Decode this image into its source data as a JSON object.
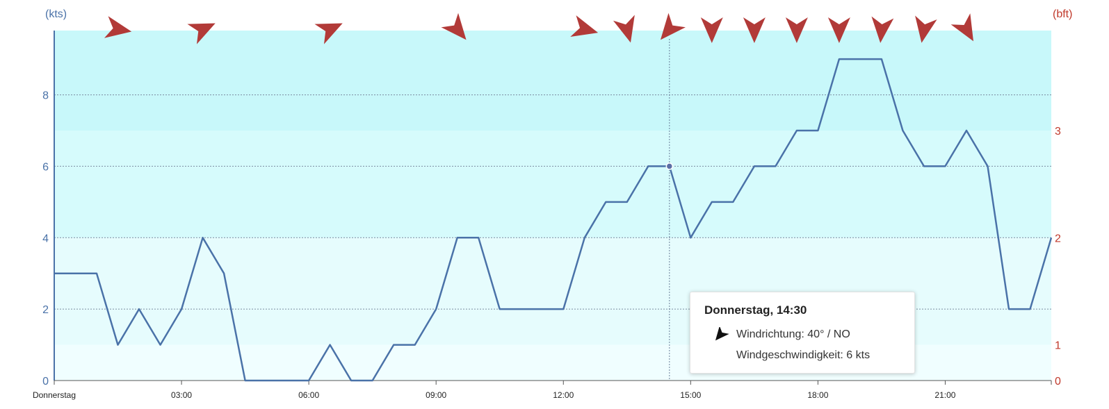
{
  "chart_data": {
    "type": "line",
    "title": "",
    "left_axis": {
      "unit": "(kts)",
      "ticks": [
        0,
        2,
        4,
        6,
        8
      ],
      "range": [
        0,
        9.8
      ]
    },
    "right_axis": {
      "unit": "(bft)",
      "ticks": [
        0,
        1,
        2,
        3
      ],
      "values_kts": [
        0,
        1,
        4,
        7
      ]
    },
    "x_axis": {
      "range_hours": [
        0,
        23.5
      ],
      "ticks": [
        {
          "hour": 0,
          "label": "Donnerstag"
        },
        {
          "hour": 3,
          "label": "03:00"
        },
        {
          "hour": 6,
          "label": "06:00"
        },
        {
          "hour": 9,
          "label": "09:00"
        },
        {
          "hour": 12,
          "label": "12:00"
        },
        {
          "hour": 15,
          "label": "15:00"
        },
        {
          "hour": 18,
          "label": "18:00"
        },
        {
          "hour": 21,
          "label": "21:00"
        }
      ]
    },
    "bands": [
      {
        "from": 0,
        "to": 1,
        "color": "#f0feff"
      },
      {
        "from": 1,
        "to": 4,
        "color": "#e6fcfd"
      },
      {
        "from": 4,
        "to": 7,
        "color": "#d6fbfc"
      },
      {
        "from": 7,
        "to": 9.8,
        "color": "#c8f8fa"
      }
    ],
    "series": [
      {
        "color": "#4a72a8",
        "points": [
          [
            0,
            3
          ],
          [
            1,
            3
          ],
          [
            1.5,
            1
          ],
          [
            2,
            2
          ],
          [
            2.5,
            1
          ],
          [
            3,
            2
          ],
          [
            3.5,
            4
          ],
          [
            4,
            3
          ],
          [
            4.5,
            0
          ],
          [
            6,
            0
          ],
          [
            6.5,
            1
          ],
          [
            7,
            0
          ],
          [
            7.5,
            0
          ],
          [
            8,
            1
          ],
          [
            8.5,
            1
          ],
          [
            9,
            2
          ],
          [
            9.5,
            4
          ],
          [
            10,
            4
          ],
          [
            10.5,
            2
          ],
          [
            12,
            2
          ],
          [
            12.5,
            4
          ],
          [
            13,
            5
          ],
          [
            13.5,
            5
          ],
          [
            14,
            6
          ],
          [
            14.5,
            6
          ],
          [
            15,
            4
          ],
          [
            15.5,
            5
          ],
          [
            16,
            5
          ],
          [
            16.5,
            6
          ],
          [
            17,
            6
          ],
          [
            17.5,
            7
          ],
          [
            18,
            7
          ],
          [
            18.5,
            9
          ],
          [
            19.5,
            9
          ],
          [
            20,
            7
          ],
          [
            20.5,
            6
          ],
          [
            21,
            6
          ],
          [
            21.5,
            7
          ],
          [
            22,
            6
          ],
          [
            22.5,
            2
          ],
          [
            23,
            2
          ],
          [
            23.5,
            4
          ]
        ]
      }
    ],
    "direction_arrows": [
      {
        "hour": 1.5,
        "deg": 280
      },
      {
        "hour": 3.5,
        "deg": 245
      },
      {
        "hour": 6.5,
        "deg": 245
      },
      {
        "hour": 9.5,
        "deg": 320
      },
      {
        "hour": 12.5,
        "deg": 285
      },
      {
        "hour": 13.5,
        "deg": 345
      },
      {
        "hour": 14.5,
        "deg": 40
      },
      {
        "hour": 15.5,
        "deg": 0
      },
      {
        "hour": 16.5,
        "deg": 0
      },
      {
        "hour": 17.5,
        "deg": 0
      },
      {
        "hour": 18.5,
        "deg": 0
      },
      {
        "hour": 19.5,
        "deg": 5
      },
      {
        "hour": 20.5,
        "deg": 10
      },
      {
        "hour": 21.5,
        "deg": 330
      }
    ],
    "crosshair_hour": 14.5,
    "highlight_point": [
      14.5,
      6
    ],
    "colors": {
      "line": "#4a72a8",
      "arrow": "#b23a38",
      "grid": "#7a8aa0",
      "left_axis": "#4a72a8",
      "right_axis": "#c0392b"
    }
  },
  "tooltip": {
    "title": "Donnerstag, 14:30",
    "direction": "Windrichtung: 40° / NO",
    "speed": "Windgeschwindigkeit: 6 kts",
    "arrow_deg": 40
  }
}
